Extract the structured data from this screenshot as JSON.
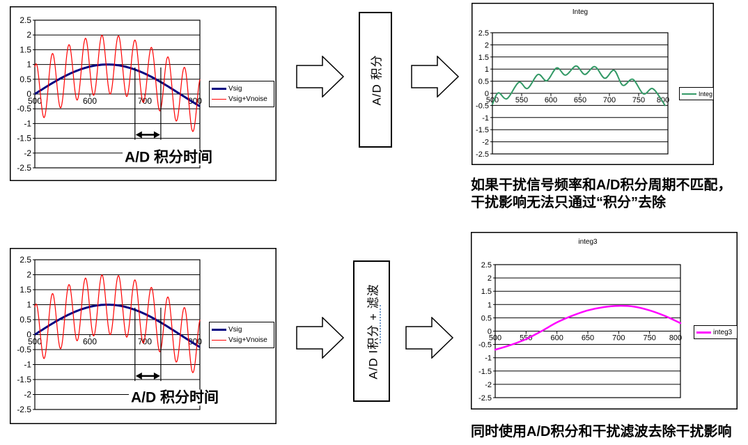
{
  "colors": {
    "vsig": "#000080",
    "vnoise": "#ff0000",
    "integ": "#339966",
    "integ3": "#ff00ff",
    "marker": "#000000",
    "artifact_dots": "#4f81bd"
  },
  "flow": {
    "top_box_label": "A/D 积分",
    "bottom_box_label": "A/D I积分 + 滤波"
  },
  "captions": {
    "top_line1": "如果干扰信号频率和A/D积分周期不匹配，",
    "top_line2": "干扰影响无法只通过“积分”去除",
    "bottom": "同时使用A/D积分和干扰滤波去除干扰影响"
  },
  "chart_data": [
    {
      "id": "tl",
      "type": "line",
      "title": "",
      "xlim": [
        500,
        800
      ],
      "ylim": [
        -2.5,
        2.5
      ],
      "xticks": [
        500,
        600,
        700,
        800
      ],
      "xtick_labels": [
        "500",
        "600",
        "700",
        "800"
      ],
      "yticks": [
        2.5,
        2,
        1.5,
        1,
        0.5,
        0,
        -0.5,
        -1,
        -1.5,
        -2,
        -2.5
      ],
      "ytick_labels": [
        "2.5",
        "2",
        "1.5",
        "1",
        "0.5",
        "0",
        "-0.5",
        "-1",
        "-1.5",
        "-2",
        "-2.5"
      ],
      "grid": true,
      "legend_position": "right",
      "legend": [
        "Vsig",
        "Vsig+Vnoise"
      ],
      "series": [
        {
          "name": "Vsig",
          "color": "#000080",
          "width": 3,
          "model": {
            "kind": "sine",
            "amp": 1,
            "x0": 500,
            "half_period": 264
          }
        },
        {
          "name": "Vsig+Vnoise",
          "color": "#ff0000",
          "width": 1.2,
          "model": {
            "kind": "sine_plus_ripple",
            "amp": 1,
            "x0": 500,
            "half_period": 264,
            "ripple_amp": 1,
            "ripple_period": 30,
            "ripple_peak_x": 502
          }
        }
      ],
      "annotation": {
        "label": "A/D 积分时间",
        "marker_x": [
          682,
          729
        ],
        "marker_y_top": 0.9,
        "marker_y_bottom": -1.55,
        "arrow_y": -1.38
      }
    },
    {
      "id": "tr",
      "type": "line",
      "title": "Integ",
      "xlim": [
        500,
        800
      ],
      "ylim": [
        -2.5,
        2.5
      ],
      "xticks": [
        500,
        550,
        600,
        650,
        700,
        750,
        800
      ],
      "xtick_labels": [
        "500",
        "550",
        "600",
        "650",
        "700",
        "750",
        "800"
      ],
      "yticks": [
        2.5,
        2,
        1.5,
        1,
        0.5,
        0,
        -0.5,
        -1,
        -1.5,
        -2,
        -2.5
      ],
      "ytick_labels": [
        "2.5",
        "2",
        "1.5",
        "1",
        "0.5",
        "0",
        "-0.5",
        "-1",
        "-1.5",
        "-2",
        "-2.5"
      ],
      "grid": true,
      "legend_position": "right",
      "legend": [
        "Integ"
      ],
      "series": [
        {
          "name": "Integ",
          "color": "#339966",
          "width": 2,
          "points": [
            [
              500,
              -0.45
            ],
            [
              510,
              0.02
            ],
            [
              525,
              -0.22
            ],
            [
              545,
              0.45
            ],
            [
              560,
              0.2
            ],
            [
              578,
              0.78
            ],
            [
              593,
              0.52
            ],
            [
              610,
              1.05
            ],
            [
              625,
              0.75
            ],
            [
              643,
              1.13
            ],
            [
              658,
              0.78
            ],
            [
              675,
              1.1
            ],
            [
              692,
              0.62
            ],
            [
              708,
              0.95
            ],
            [
              723,
              0.33
            ],
            [
              740,
              0.58
            ],
            [
              758,
              -0.02
            ],
            [
              773,
              0.2
            ],
            [
              786,
              -0.15
            ],
            [
              795,
              -0.5
            ]
          ]
        }
      ]
    },
    {
      "id": "bl",
      "type": "line",
      "title": "",
      "xlim": [
        500,
        800
      ],
      "ylim": [
        -2.5,
        2.5
      ],
      "xticks": [
        500,
        600,
        700,
        800
      ],
      "xtick_labels": [
        "500",
        "600",
        "700",
        "800"
      ],
      "yticks": [
        2.5,
        2,
        1.5,
        1,
        0.5,
        0,
        -0.5,
        -1,
        -1.5,
        -2,
        -2.5
      ],
      "ytick_labels": [
        "2.5",
        "2",
        "1.5",
        "1",
        "0.5",
        "0",
        "-0.5",
        "-1",
        "-1.5",
        "-2",
        "-2.5"
      ],
      "grid": true,
      "legend_position": "right",
      "legend": [
        "Vsig",
        "Vsig+Vnoise"
      ],
      "series": [
        {
          "name": "Vsig",
          "color": "#000080",
          "width": 3,
          "model": {
            "kind": "sine",
            "amp": 1,
            "x0": 500,
            "half_period": 264
          }
        },
        {
          "name": "Vsig+Vnoise",
          "color": "#ff0000",
          "width": 1.2,
          "model": {
            "kind": "sine_plus_ripple",
            "amp": 1,
            "x0": 500,
            "half_period": 264,
            "ripple_amp": 1,
            "ripple_period": 30,
            "ripple_peak_x": 502
          }
        }
      ],
      "annotation": {
        "label": "A/D 积分时间",
        "marker_x": [
          682,
          729
        ],
        "marker_y_top": 0.9,
        "marker_y_bottom": -1.55,
        "arrow_y": -1.38
      }
    },
    {
      "id": "br",
      "type": "line",
      "title": "integ3",
      "xlim": [
        500,
        800
      ],
      "ylim": [
        -2.5,
        2.5
      ],
      "xticks": [
        500,
        550,
        600,
        650,
        700,
        750,
        800
      ],
      "xtick_labels": [
        "500",
        "550",
        "600",
        "650",
        "700",
        "750",
        "800"
      ],
      "yticks": [
        2.5,
        2,
        1.5,
        1,
        0.5,
        0,
        -0.5,
        -1,
        -1.5,
        -2,
        -2.5
      ],
      "ytick_labels": [
        "2.5",
        "2",
        "1.5",
        "1",
        "0.5",
        "0",
        "-0.5",
        "-1",
        "-1.5",
        "-2",
        "-2.5"
      ],
      "grid": true,
      "legend_position": "right",
      "legend": [
        "integ3"
      ],
      "series": [
        {
          "name": "integ3",
          "color": "#ff00ff",
          "width": 2.5,
          "points": [
            [
              500,
              -0.7
            ],
            [
              525,
              -0.52
            ],
            [
              550,
              -0.3
            ],
            [
              575,
              0.0
            ],
            [
              600,
              0.33
            ],
            [
              625,
              0.58
            ],
            [
              650,
              0.78
            ],
            [
              675,
              0.9
            ],
            [
              700,
              0.95
            ],
            [
              725,
              0.92
            ],
            [
              750,
              0.78
            ],
            [
              775,
              0.57
            ],
            [
              800,
              0.3
            ]
          ]
        }
      ]
    }
  ]
}
